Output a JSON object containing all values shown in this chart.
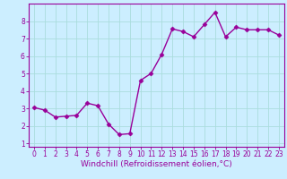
{
  "x": [
    0,
    1,
    2,
    3,
    4,
    5,
    6,
    7,
    8,
    9,
    10,
    11,
    12,
    13,
    14,
    15,
    16,
    17,
    18,
    19,
    20,
    21,
    22,
    23
  ],
  "y": [
    3.05,
    2.9,
    2.5,
    2.55,
    2.6,
    3.3,
    3.15,
    2.1,
    1.5,
    1.55,
    4.6,
    5.0,
    6.1,
    7.55,
    7.4,
    7.1,
    7.8,
    8.5,
    7.1,
    7.65,
    7.5,
    7.5,
    7.5,
    7.2
  ],
  "line_color": "#990099",
  "marker": "D",
  "marker_size": 2.5,
  "linewidth": 1.0,
  "bg_color": "#cceeff",
  "grid_color": "#aadddd",
  "xlabel": "Windchill (Refroidissement éolien,°C)",
  "xlabel_color": "#990099",
  "xlabel_fontsize": 6.5,
  "xlim": [
    -0.5,
    23.5
  ],
  "ylim": [
    0.8,
    9.0
  ],
  "yticks": [
    1,
    2,
    3,
    4,
    5,
    6,
    7,
    8
  ],
  "xticks": [
    0,
    1,
    2,
    3,
    4,
    5,
    6,
    7,
    8,
    9,
    10,
    11,
    12,
    13,
    14,
    15,
    16,
    17,
    18,
    19,
    20,
    21,
    22,
    23
  ],
  "tick_color": "#990099",
  "tick_fontsize": 5.5,
  "spine_color": "#990099"
}
